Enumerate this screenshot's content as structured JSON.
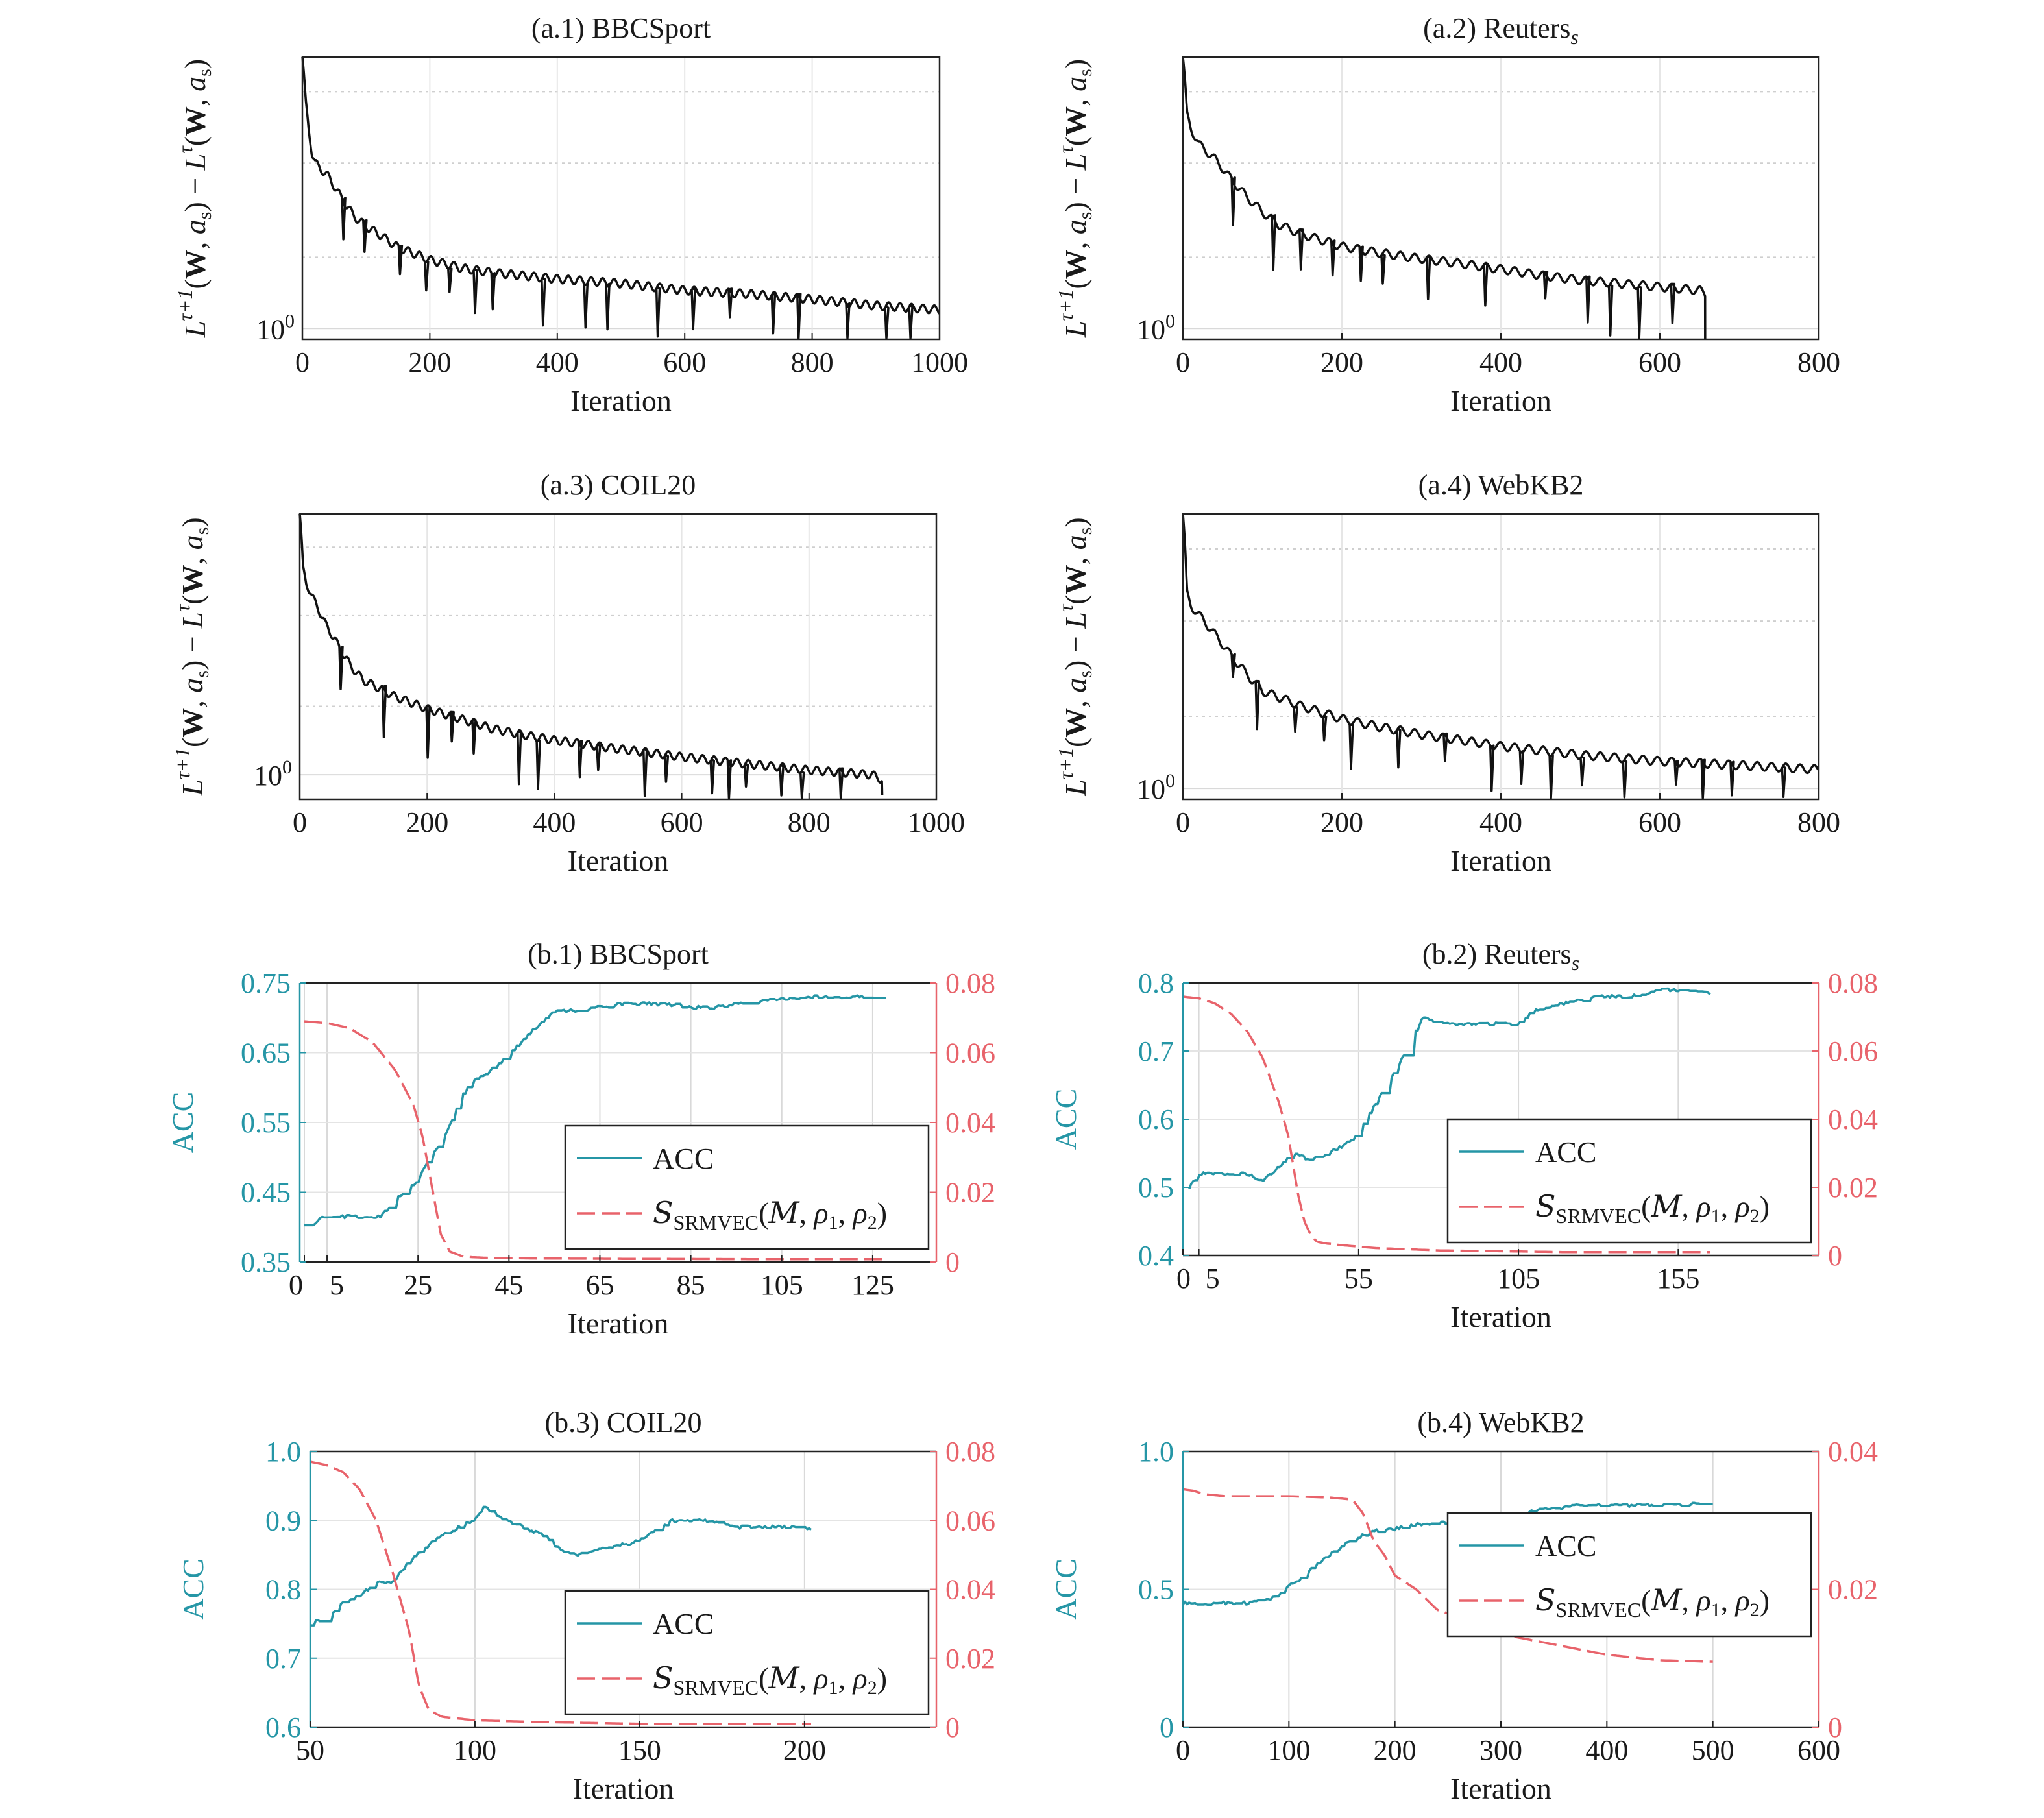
{
  "figure": {
    "top_ylabel": "L^{τ+1}(W, a_s) − L^τ(W, a_s)",
    "xlabel": "Iteration",
    "acc_ylabel": "ACC",
    "colors": {
      "loss": "#111111",
      "acc": "#2596a6",
      "srm": "#e8636b",
      "grid": "#d9d9d9",
      "axis": "#222222"
    }
  },
  "chart_data": [
    {
      "id": "a1",
      "type": "line",
      "title_main": "(a.1) BBCSport",
      "title_sub": "",
      "xlabel": "Iteration",
      "ylabel": "L^{τ+1}(W, a_s) − L^τ(W, a_s)",
      "yscale": "log",
      "xlim": [
        0,
        1000
      ],
      "xticks": [
        0,
        200,
        400,
        600,
        800,
        1000
      ],
      "ytick_label": "10^0",
      "ytick_value": 1.0,
      "ylim": [
        0.9,
        14
      ],
      "series": [
        {
          "role": "loss",
          "color": "#111111",
          "x": [
            0,
            5,
            10,
            15,
            20,
            40,
            60,
            80,
            100,
            150,
            200,
            250,
            300,
            400,
            500,
            600,
            700,
            800,
            900,
            1000
          ],
          "y": [
            14,
            9,
            7,
            5.5,
            5,
            4.4,
            3.6,
            3.0,
            2.7,
            2.2,
            1.95,
            1.8,
            1.72,
            1.62,
            1.55,
            1.45,
            1.4,
            1.33,
            1.25,
            1.2
          ]
        }
      ]
    },
    {
      "id": "a2",
      "type": "line",
      "title_main": "(a.2) Reuters",
      "title_sub": "s",
      "xlabel": "Iteration",
      "ylabel": "L^{τ+1}(W, a_s) − L^τ(W, a_s)",
      "yscale": "log",
      "xlim": [
        0,
        800
      ],
      "xticks": [
        0,
        200,
        400,
        600,
        800
      ],
      "ytick_label": "10^0",
      "ytick_value": 1.0,
      "ylim": [
        0.9,
        14
      ],
      "series": [
        {
          "role": "loss",
          "color": "#111111",
          "x": [
            0,
            5,
            10,
            20,
            40,
            60,
            80,
            100,
            120,
            150,
            200,
            250,
            300,
            350,
            400,
            450,
            500,
            550,
            600,
            650,
            657
          ],
          "y": [
            14,
            8,
            7,
            6,
            5.2,
            4.3,
            3.6,
            3.1,
            2.75,
            2.5,
            2.22,
            2.08,
            1.97,
            1.88,
            1.78,
            1.68,
            1.6,
            1.55,
            1.5,
            1.45,
            1.4
          ]
        }
      ]
    },
    {
      "id": "a3",
      "type": "line",
      "title_main": "(a.3) COIL20",
      "title_sub": "",
      "xlabel": "Iteration",
      "ylabel": "L^{τ+1}(W, a_s) − L^τ(W, a_s)",
      "yscale": "log",
      "xlim": [
        0,
        1000
      ],
      "xticks": [
        0,
        200,
        400,
        600,
        800,
        1000
      ],
      "ytick_label": "10^0",
      "ytick_value": 1.0,
      "ylim": [
        0.78,
        14
      ],
      "series": [
        {
          "role": "loss",
          "color": "#111111",
          "x": [
            0,
            5,
            10,
            20,
            40,
            60,
            80,
            100,
            150,
            200,
            250,
            300,
            350,
            400,
            500,
            600,
            700,
            800,
            900,
            915
          ],
          "y": [
            14,
            8,
            7,
            6,
            4.6,
            3.7,
            3.0,
            2.6,
            2.2,
            1.95,
            1.77,
            1.6,
            1.5,
            1.42,
            1.3,
            1.2,
            1.12,
            1.05,
            1.0,
            0.95
          ]
        }
      ]
    },
    {
      "id": "a4",
      "type": "line",
      "title_main": "(a.4) WebKB2",
      "title_sub": "",
      "xlabel": "Iteration",
      "ylabel": "L^{τ+1}(W, a_s) − L^τ(W, a_s)",
      "yscale": "log",
      "xlim": [
        0,
        800
      ],
      "xticks": [
        0,
        200,
        400,
        600,
        800
      ],
      "ytick_label": "10^0",
      "ytick_value": 1.0,
      "ylim": [
        0.9,
        14
      ],
      "series": [
        {
          "role": "loss",
          "color": "#111111",
          "x": [
            0,
            5,
            10,
            20,
            40,
            60,
            80,
            100,
            150,
            200,
            250,
            300,
            400,
            500,
            600,
            700,
            800
          ],
          "y": [
            14,
            6.5,
            5.8,
            5.3,
            4.4,
            3.6,
            3.0,
            2.55,
            2.2,
            1.95,
            1.8,
            1.68,
            1.5,
            1.38,
            1.3,
            1.25,
            1.2
          ]
        }
      ]
    },
    {
      "id": "b1",
      "type": "line",
      "title_main": "(b.1) BBCSport",
      "title_sub": "",
      "xlabel": "Iteration",
      "ylabel": "ACC",
      "xlim": [
        -1,
        139
      ],
      "xticks": [
        0,
        5,
        25,
        45,
        65,
        85,
        105,
        125
      ],
      "ylim": [
        0.35,
        0.75
      ],
      "yticks": [
        "0.75",
        "0.65",
        "0.55",
        "0.45",
        "0.35"
      ],
      "y2lim": [
        0,
        0.08
      ],
      "y2ticks": [
        "0.08",
        "0.06",
        "0.04",
        "0.02",
        "0"
      ],
      "legend": {
        "position": "lower-right",
        "acc_label": "ACC",
        "srm_label": "S_SRMVEC(M, ρ1, ρ2)"
      },
      "series": [
        {
          "role": "acc",
          "axis": "left",
          "color": "#2596a6",
          "x": [
            0,
            2,
            3,
            5,
            7,
            10,
            14,
            17,
            20,
            24,
            28,
            31,
            34,
            37,
            40,
            44,
            47,
            50,
            55,
            60,
            70,
            80,
            85,
            90,
            100,
            110,
            125,
            128
          ],
          "y": [
            0.405,
            0.405,
            0.41,
            0.415,
            0.415,
            0.415,
            0.415,
            0.415,
            0.44,
            0.46,
            0.5,
            0.53,
            0.58,
            0.61,
            0.62,
            0.64,
            0.66,
            0.68,
            0.71,
            0.71,
            0.72,
            0.72,
            0.715,
            0.715,
            0.725,
            0.73,
            0.73,
            0.73
          ]
        },
        {
          "role": "srm",
          "axis": "right",
          "color": "#e8636b",
          "x": [
            0,
            5,
            10,
            15,
            20,
            24,
            26,
            28,
            30,
            32,
            35,
            40,
            50,
            70,
            100,
            128
          ],
          "y": [
            0.069,
            0.0685,
            0.067,
            0.063,
            0.055,
            0.045,
            0.036,
            0.022,
            0.008,
            0.003,
            0.0015,
            0.0012,
            0.001,
            0.0009,
            0.0008,
            0.0008
          ]
        }
      ]
    },
    {
      "id": "b2",
      "type": "line",
      "title_main": "(b.2) Reuters",
      "title_sub": "s",
      "xlabel": "Iteration",
      "ylabel": "ACC",
      "xlim": [
        0,
        199
      ],
      "xticks": [
        0,
        5,
        55,
        105,
        155
      ],
      "ylim": [
        0.4,
        0.8
      ],
      "yticks": [
        "0.8",
        "0.7",
        "0.6",
        "0.5",
        "0.4"
      ],
      "y2lim": [
        0,
        0.08
      ],
      "y2ticks": [
        "0.08",
        "0.06",
        "0.04",
        "0.02",
        "0"
      ],
      "legend": {
        "position": "lower-right",
        "acc_label": "ACC",
        "srm_label": "S_SRMVEC(M, ρ1, ρ2)"
      },
      "series": [
        {
          "role": "acc",
          "axis": "left",
          "color": "#2596a6",
          "x": [
            2,
            5,
            10,
            15,
            20,
            25,
            30,
            35,
            40,
            45,
            50,
            55,
            60,
            65,
            70,
            75,
            80,
            85,
            90,
            100,
            105,
            110,
            120,
            130,
            140,
            150,
            155,
            165
          ],
          "y": [
            0.5,
            0.52,
            0.52,
            0.52,
            0.52,
            0.51,
            0.53,
            0.55,
            0.54,
            0.55,
            0.56,
            0.58,
            0.62,
            0.66,
            0.7,
            0.75,
            0.74,
            0.74,
            0.74,
            0.74,
            0.74,
            0.76,
            0.77,
            0.78,
            0.78,
            0.79,
            0.79,
            0.785
          ]
        },
        {
          "role": "srm",
          "axis": "right",
          "color": "#e8636b",
          "x": [
            0,
            5,
            10,
            15,
            20,
            25,
            30,
            33,
            36,
            38,
            40,
            42,
            45,
            50,
            60,
            80,
            120,
            165
          ],
          "y": [
            0.076,
            0.0755,
            0.074,
            0.071,
            0.066,
            0.058,
            0.045,
            0.035,
            0.018,
            0.01,
            0.006,
            0.004,
            0.0035,
            0.003,
            0.0022,
            0.0015,
            0.001,
            0.001
          ]
        }
      ]
    },
    {
      "id": "b3",
      "type": "line",
      "title_main": "(b.3) COIL20",
      "title_sub": "",
      "xlabel": "Iteration",
      "ylabel": "ACC",
      "xlim": [
        50,
        240
      ],
      "xticks": [
        50,
        100,
        150,
        200
      ],
      "ylim": [
        0.6,
        1.0
      ],
      "yticks": [
        "1.0",
        "0.9",
        "0.8",
        "0.7",
        "0.6"
      ],
      "y2lim": [
        0,
        0.08
      ],
      "y2ticks": [
        "0.08",
        "0.06",
        "0.04",
        "0.02",
        "0"
      ],
      "legend": {
        "position": "lower-right",
        "acc_label": "ACC",
        "srm_label": "S_SRMVEC(M, ρ1, ρ2)"
      },
      "series": [
        {
          "role": "acc",
          "axis": "left",
          "color": "#2596a6",
          "x": [
            50,
            55,
            60,
            65,
            70,
            75,
            80,
            85,
            90,
            95,
            100,
            103,
            106,
            110,
            115,
            120,
            125,
            130,
            140,
            150,
            160,
            170,
            180,
            190,
            200,
            202
          ],
          "y": [
            0.75,
            0.76,
            0.78,
            0.79,
            0.81,
            0.81,
            0.84,
            0.86,
            0.88,
            0.89,
            0.9,
            0.92,
            0.91,
            0.9,
            0.89,
            0.88,
            0.86,
            0.85,
            0.86,
            0.87,
            0.9,
            0.9,
            0.89,
            0.89,
            0.89,
            0.885
          ]
        },
        {
          "role": "srm",
          "axis": "right",
          "color": "#e8636b",
          "x": [
            50,
            55,
            60,
            65,
            70,
            75,
            80,
            83,
            86,
            90,
            100,
            120,
            150,
            202
          ],
          "y": [
            0.077,
            0.076,
            0.074,
            0.069,
            0.06,
            0.045,
            0.028,
            0.012,
            0.005,
            0.003,
            0.002,
            0.0015,
            0.001,
            0.001
          ]
        }
      ]
    },
    {
      "id": "b4",
      "type": "line",
      "title_main": "(b.4) WebKB2",
      "title_sub": "",
      "xlabel": "Iteration",
      "ylabel": "ACC",
      "xlim": [
        0,
        600
      ],
      "xticks": [
        0,
        100,
        200,
        300,
        400,
        500,
        600
      ],
      "ylim": [
        0,
        1.0
      ],
      "yticks": [
        "1.0",
        "0.5",
        "0"
      ],
      "y2lim": [
        0,
        0.04
      ],
      "y2ticks": [
        "0.04",
        "0.02",
        "0"
      ],
      "legend": {
        "position": "center-right",
        "acc_label": "ACC",
        "srm_label": "S_SRMVEC(M, ρ1, ρ2)"
      },
      "series": [
        {
          "role": "acc",
          "axis": "left",
          "color": "#2596a6",
          "x": [
            0,
            20,
            40,
            60,
            80,
            90,
            100,
            120,
            140,
            160,
            180,
            200,
            220,
            240,
            260,
            300,
            340,
            380,
            420,
            460,
            500
          ],
          "y": [
            0.45,
            0.45,
            0.45,
            0.45,
            0.46,
            0.48,
            0.51,
            0.57,
            0.63,
            0.68,
            0.71,
            0.72,
            0.735,
            0.74,
            0.745,
            0.76,
            0.79,
            0.805,
            0.805,
            0.805,
            0.81
          ]
        },
        {
          "role": "srm",
          "axis": "right",
          "color": "#e8636b",
          "x": [
            0,
            10,
            20,
            40,
            60,
            100,
            140,
            160,
            170,
            180,
            190,
            200,
            220,
            240,
            260,
            300,
            350,
            400,
            450,
            500
          ],
          "y": [
            0.0345,
            0.0343,
            0.0338,
            0.0335,
            0.0335,
            0.0335,
            0.0333,
            0.033,
            0.031,
            0.027,
            0.025,
            0.022,
            0.02,
            0.017,
            0.016,
            0.0135,
            0.012,
            0.0105,
            0.0097,
            0.0095
          ]
        }
      ]
    }
  ]
}
